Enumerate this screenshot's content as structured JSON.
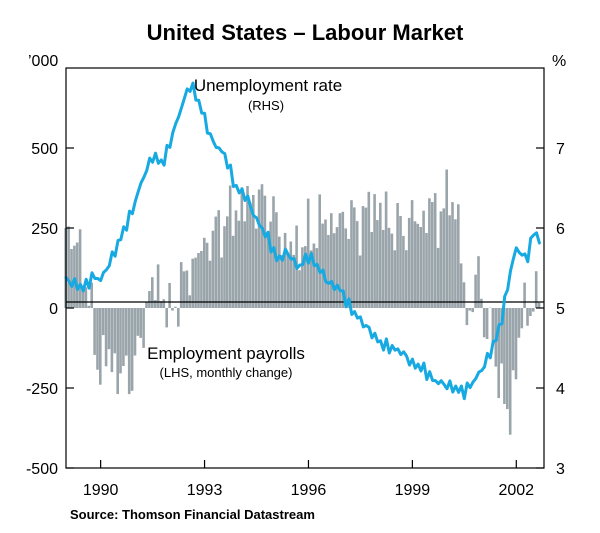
{
  "chart_data": {
    "type": "bar+line",
    "title": "United States – Labour Market",
    "source": "Source: Thomson Financial Datastream",
    "left_axis": {
      "unit": "’000",
      "range": [
        -500,
        750
      ],
      "ticks": [
        -500,
        -250,
        0,
        250,
        500
      ],
      "tick_labels": [
        "-500",
        "-250",
        "0",
        "250",
        "500"
      ]
    },
    "right_axis": {
      "unit": "%",
      "range": [
        3,
        8
      ],
      "ticks": [
        3,
        4,
        5,
        6,
        7
      ],
      "tick_labels": [
        "3",
        "4",
        "5",
        "6",
        "7"
      ]
    },
    "x_axis": {
      "range": [
        1989.0,
        2002.8
      ],
      "ticks": [
        1990,
        1993,
        1996,
        1999,
        2002
      ],
      "tick_labels": [
        "1990",
        "1993",
        "1996",
        "1999",
        "2002"
      ]
    },
    "annotations": [
      {
        "text": "Unemployment rate",
        "series": "unemployment",
        "kind": "main"
      },
      {
        "text": "(RHS)",
        "series": "unemployment",
        "kind": "sub"
      },
      {
        "text": "Employment payrolls",
        "series": "payrolls",
        "kind": "main"
      },
      {
        "text": "(LHS, monthly change)",
        "series": "payrolls",
        "kind": "sub"
      }
    ],
    "colors": {
      "bars": "#9aa5ab",
      "line": "#17a9e1",
      "axis": "#000000"
    },
    "unemployment_points": [
      [
        1989.0,
        5.35
      ],
      [
        1989.5,
        5.25
      ],
      [
        1989.8,
        5.4
      ],
      [
        1990.0,
        5.35
      ],
      [
        1990.3,
        5.6
      ],
      [
        1990.6,
        5.9
      ],
      [
        1990.9,
        6.2
      ],
      [
        1991.2,
        6.6
      ],
      [
        1991.5,
        6.9
      ],
      [
        1991.8,
        6.8
      ],
      [
        1992.1,
        7.2
      ],
      [
        1992.4,
        7.6
      ],
      [
        1992.6,
        7.8
      ],
      [
        1992.9,
        7.5
      ],
      [
        1993.2,
        7.1
      ],
      [
        1993.6,
        6.9
      ],
      [
        1993.9,
        6.5
      ],
      [
        1994.2,
        6.4
      ],
      [
        1994.5,
        6.1
      ],
      [
        1994.8,
        5.9
      ],
      [
        1995.1,
        5.6
      ],
      [
        1995.4,
        5.7
      ],
      [
        1995.7,
        5.5
      ],
      [
        1996.0,
        5.65
      ],
      [
        1996.3,
        5.5
      ],
      [
        1996.6,
        5.3
      ],
      [
        1996.9,
        5.25
      ],
      [
        1997.2,
        5.0
      ],
      [
        1997.5,
        4.85
      ],
      [
        1997.8,
        4.7
      ],
      [
        1998.1,
        4.55
      ],
      [
        1998.4,
        4.5
      ],
      [
        1998.7,
        4.45
      ],
      [
        1999.0,
        4.3
      ],
      [
        1999.3,
        4.25
      ],
      [
        1999.6,
        4.1
      ],
      [
        1999.9,
        4.05
      ],
      [
        2000.2,
        4.0
      ],
      [
        2000.5,
        3.95
      ],
      [
        2000.8,
        4.1
      ],
      [
        2001.1,
        4.3
      ],
      [
        2001.4,
        4.6
      ],
      [
        2001.6,
        4.9
      ],
      [
        2001.8,
        5.4
      ],
      [
        2002.0,
        5.75
      ],
      [
        2002.3,
        5.6
      ],
      [
        2002.5,
        5.95
      ],
      [
        2002.7,
        5.85
      ]
    ],
    "payroll_points": [
      [
        1989.0,
        250
      ],
      [
        1989.3,
        200
      ],
      [
        1989.6,
        100
      ],
      [
        1989.9,
        -180
      ],
      [
        1990.2,
        -150
      ],
      [
        1990.5,
        -200
      ],
      [
        1990.8,
        -220
      ],
      [
        1991.1,
        -150
      ],
      [
        1991.4,
        50
      ],
      [
        1991.7,
        80
      ],
      [
        1992.0,
        -30
      ],
      [
        1992.3,
        60
      ],
      [
        1992.6,
        120
      ],
      [
        1992.9,
        180
      ],
      [
        1993.2,
        220
      ],
      [
        1993.5,
        260
      ],
      [
        1993.8,
        290
      ],
      [
        1994.1,
        320
      ],
      [
        1994.4,
        340
      ],
      [
        1994.7,
        330
      ],
      [
        1995.0,
        290
      ],
      [
        1995.3,
        200
      ],
      [
        1995.6,
        180
      ],
      [
        1995.9,
        210
      ],
      [
        1996.2,
        240
      ],
      [
        1996.5,
        280
      ],
      [
        1996.8,
        250
      ],
      [
        1997.1,
        290
      ],
      [
        1997.4,
        260
      ],
      [
        1997.7,
        300
      ],
      [
        1997.9,
        320
      ],
      [
        1998.1,
        300
      ],
      [
        1998.4,
        260
      ],
      [
        1998.7,
        240
      ],
      [
        1999.0,
        280
      ],
      [
        1999.3,
        270
      ],
      [
        1999.6,
        320
      ],
      [
        1999.9,
        280
      ],
      [
        2000.1,
        390
      ],
      [
        2000.4,
        200
      ],
      [
        2000.6,
        -60
      ],
      [
        2000.9,
        120
      ],
      [
        2001.1,
        -40
      ],
      [
        2001.4,
        -150
      ],
      [
        2001.6,
        -250
      ],
      [
        2001.8,
        -380
      ],
      [
        2002.0,
        -160
      ],
      [
        2002.2,
        -30
      ],
      [
        2002.4,
        20
      ],
      [
        2002.7,
        10
      ]
    ]
  }
}
